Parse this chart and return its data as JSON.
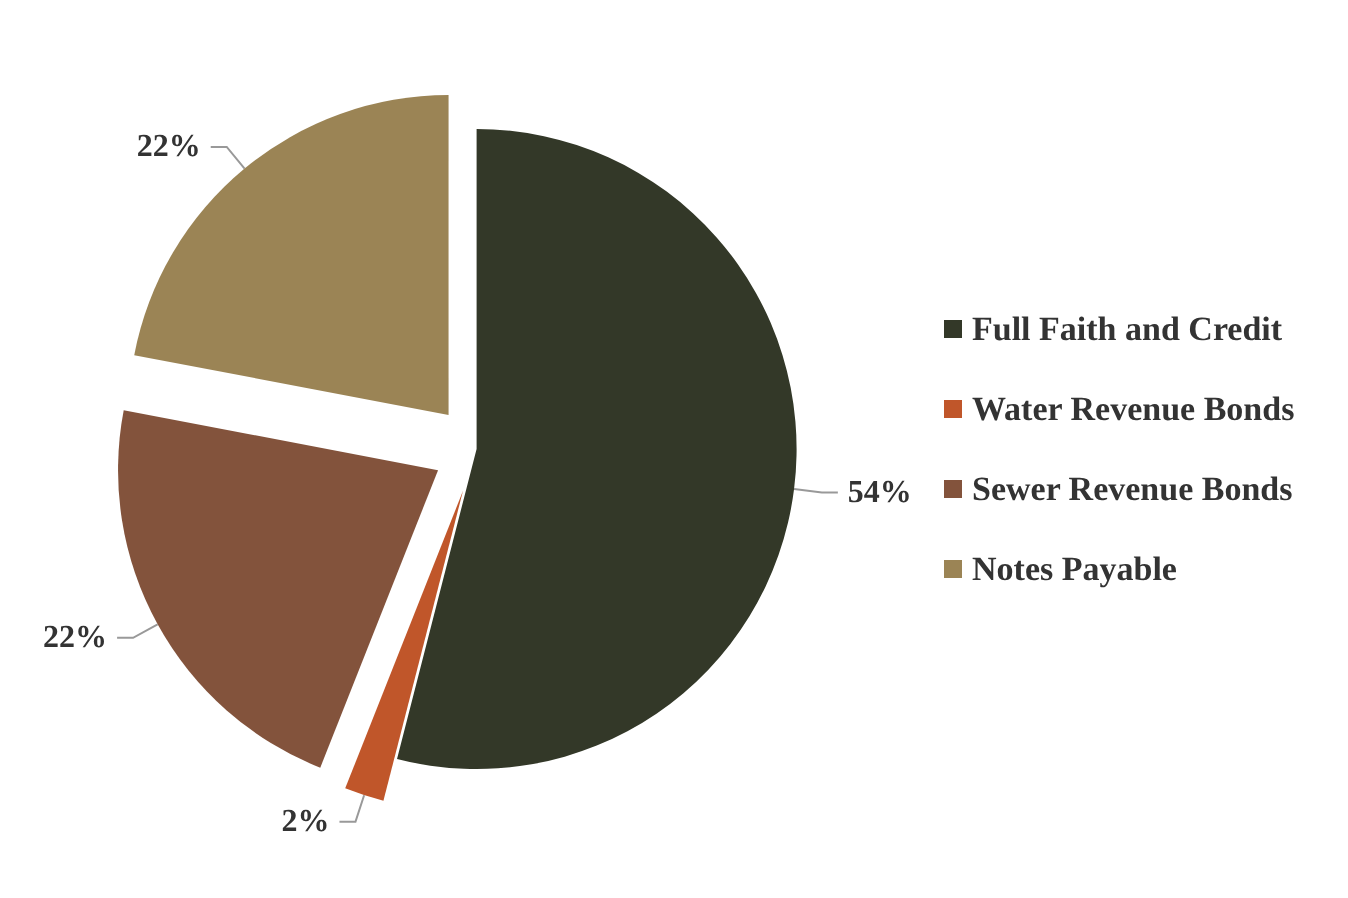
{
  "chart_data": {
    "type": "pie",
    "categories": [
      "Full Faith and Credit",
      "Water Revenue Bonds",
      "Sewer Revenue Bonds",
      "Notes Payable"
    ],
    "values": [
      54,
      2,
      22,
      22
    ],
    "colors": [
      "#333828",
      "#c0562a",
      "#83533c",
      "#9b8455"
    ],
    "value_labels": [
      "54%",
      "2%",
      "22%",
      "22%"
    ],
    "legend": "right"
  }
}
